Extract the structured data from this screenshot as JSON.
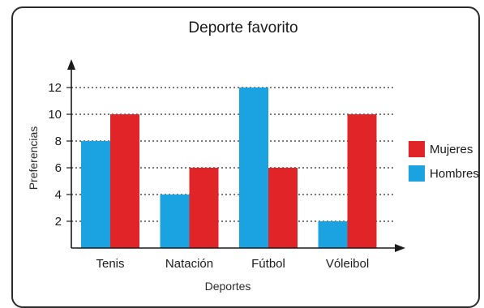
{
  "chart_data": {
    "type": "bar",
    "title": "Deporte favorito",
    "xlabel": "Deportes",
    "ylabel": "Preferencias",
    "categories": [
      "Tenis",
      "Natación",
      "Fútbol",
      "Vóleibol"
    ],
    "series": [
      {
        "name": "Hombres",
        "values": [
          8,
          4,
          12,
          2
        ],
        "color": "#1aa3e0"
      },
      {
        "name": "Mujeres",
        "values": [
          10,
          6,
          6,
          10
        ],
        "color": "#e02427"
      }
    ],
    "yticks": [
      2,
      4,
      6,
      8,
      10,
      12
    ],
    "ylim": [
      0,
      13.5
    ],
    "grid": "dotted horizontal",
    "legend": "right",
    "legend_order": [
      "Mujeres",
      "Hombres"
    ]
  }
}
